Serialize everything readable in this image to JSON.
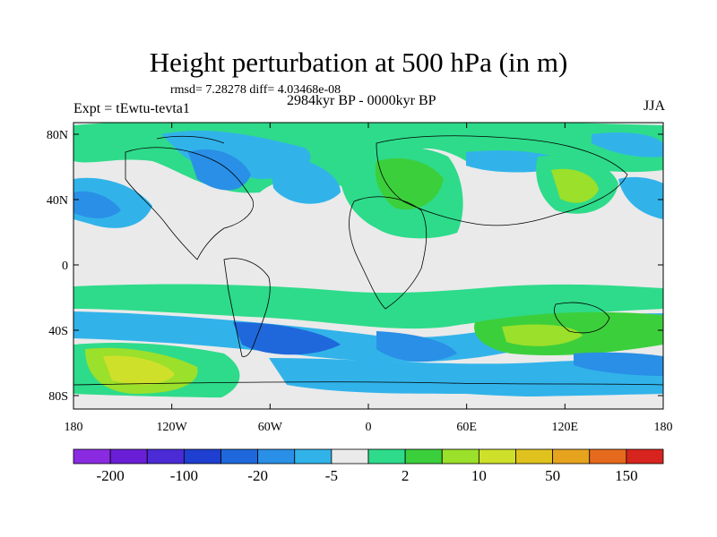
{
  "header": {
    "title": "Height perturbation at 500 hPa (in m)",
    "stats": "rmsd= 7.28278  diff= 4.03468e-08",
    "period": "2984kyr BP - 0000kyr BP",
    "experiment": "Expt = tEwtu-tevta1",
    "season": "JJA"
  },
  "map": {
    "lat_ticks": [
      "80N",
      "40N",
      "0",
      "40S",
      "80S"
    ],
    "lon_ticks": [
      "180",
      "120W",
      "60W",
      "0",
      "60E",
      "120E",
      "180"
    ]
  },
  "colorbar": {
    "colors": [
      "#8a2be2",
      "#6a1fd6",
      "#4b2bd6",
      "#1e3fd0",
      "#1f68db",
      "#2a8fe6",
      "#31b3ea",
      "#eaeaea",
      "#2edb8a",
      "#3ccf3c",
      "#9be02a",
      "#cfe02a",
      "#e0c21e",
      "#e6a31e",
      "#e66a1e",
      "#d8241e"
    ],
    "labels": [
      "-200",
      "-100",
      "-20",
      "-5",
      "2",
      "10",
      "50",
      "150"
    ]
  }
}
